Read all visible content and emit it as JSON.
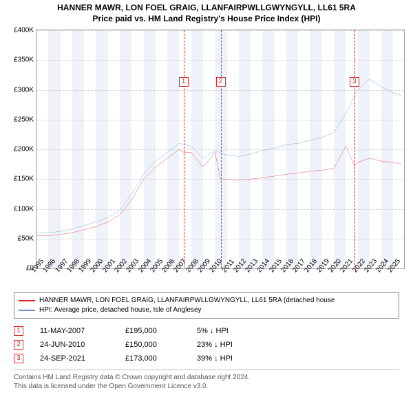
{
  "title": {
    "line1": "HANNER MAWR, LON FOEL GRAIG, LLANFAIRPWLLGWYNGYLL, LL61 5RA",
    "line2": "Price paid vs. HM Land Registry's House Price Index (HPI)"
  },
  "chart": {
    "type": "line",
    "background_color": "#ffffff",
    "grid_color": "#cccccc",
    "axis_color": "#999999",
    "xlim": [
      1995,
      2025.9
    ],
    "ylim": [
      0,
      400000
    ],
    "yticks": [
      0,
      50000,
      100000,
      150000,
      200000,
      250000,
      300000,
      350000,
      400000
    ],
    "ytick_labels": [
      "£0",
      "£50K",
      "£100K",
      "£150K",
      "£200K",
      "£250K",
      "£300K",
      "£350K",
      "£400K"
    ],
    "ytick_fontsize": 10,
    "xticks": [
      1995,
      1996,
      1997,
      1998,
      1999,
      2000,
      2001,
      2002,
      2003,
      2004,
      2005,
      2006,
      2007,
      2008,
      2009,
      2010,
      2011,
      2012,
      2013,
      2014,
      2015,
      2016,
      2017,
      2018,
      2019,
      2020,
      2021,
      2022,
      2023,
      2024,
      2025
    ],
    "xtick_fontsize": 10,
    "alt_bands": {
      "color": "#e8eef7",
      "years": [
        1996,
        1998,
        2000,
        2002,
        2004,
        2006,
        2008,
        2010,
        2012,
        2014,
        2016,
        2018,
        2020,
        2022,
        2024
      ]
    },
    "series": [
      {
        "name": "subject",
        "label": "HANNER MAWR, LON FOEL GRAIG, LLANFAIRPWLLGWYNGYLL, LL61 5RA (detached house",
        "color": "#d62728",
        "line_width": 1.4,
        "points": [
          [
            1995.0,
            55000
          ],
          [
            1996.0,
            55000
          ],
          [
            1997.0,
            57000
          ],
          [
            1998.0,
            60000
          ],
          [
            1999.0,
            65000
          ],
          [
            2000.0,
            70000
          ],
          [
            2001.0,
            78000
          ],
          [
            2002.0,
            90000
          ],
          [
            2003.0,
            115000
          ],
          [
            2004.0,
            150000
          ],
          [
            2005.0,
            170000
          ],
          [
            2006.0,
            185000
          ],
          [
            2007.0,
            200000
          ],
          [
            2007.36,
            195000
          ],
          [
            2008.0,
            195000
          ],
          [
            2009.0,
            170000
          ],
          [
            2010.0,
            195000
          ],
          [
            2010.48,
            150000
          ],
          [
            2011.0,
            150000
          ],
          [
            2012.0,
            148000
          ],
          [
            2013.0,
            150000
          ],
          [
            2014.0,
            152000
          ],
          [
            2015.0,
            155000
          ],
          [
            2016.0,
            158000
          ],
          [
            2017.0,
            160000
          ],
          [
            2018.0,
            163000
          ],
          [
            2019.0,
            165000
          ],
          [
            2020.0,
            168000
          ],
          [
            2021.0,
            205000
          ],
          [
            2021.73,
            173000
          ],
          [
            2022.0,
            178000
          ],
          [
            2023.0,
            185000
          ],
          [
            2024.0,
            180000
          ],
          [
            2025.0,
            178000
          ],
          [
            2025.7,
            175000
          ]
        ]
      },
      {
        "name": "hpi",
        "label": "HPI: Average price, detached house, Isle of Anglesey",
        "color": "#6b8fc9",
        "line_width": 1.4,
        "points": [
          [
            1995.0,
            60000
          ],
          [
            1996.0,
            60000
          ],
          [
            1997.0,
            62000
          ],
          [
            1998.0,
            66000
          ],
          [
            1999.0,
            72000
          ],
          [
            2000.0,
            78000
          ],
          [
            2001.0,
            85000
          ],
          [
            2002.0,
            98000
          ],
          [
            2003.0,
            125000
          ],
          [
            2004.0,
            158000
          ],
          [
            2005.0,
            180000
          ],
          [
            2006.0,
            195000
          ],
          [
            2007.0,
            210000
          ],
          [
            2008.0,
            205000
          ],
          [
            2009.0,
            185000
          ],
          [
            2010.0,
            198000
          ],
          [
            2011.0,
            190000
          ],
          [
            2012.0,
            188000
          ],
          [
            2013.0,
            192000
          ],
          [
            2014.0,
            198000
          ],
          [
            2015.0,
            202000
          ],
          [
            2016.0,
            208000
          ],
          [
            2017.0,
            210000
          ],
          [
            2018.0,
            215000
          ],
          [
            2019.0,
            220000
          ],
          [
            2020.0,
            228000
          ],
          [
            2021.0,
            260000
          ],
          [
            2022.0,
            300000
          ],
          [
            2023.0,
            318000
          ],
          [
            2024.0,
            305000
          ],
          [
            2025.0,
            295000
          ],
          [
            2025.7,
            290000
          ]
        ]
      }
    ],
    "markers": [
      {
        "n": "1",
        "x": 2007.36,
        "color": "#d62728",
        "box_y_offset": 68
      },
      {
        "n": "2",
        "x": 2010.48,
        "color": "#d62728",
        "box_y_offset": 68
      },
      {
        "n": "3",
        "x": 2021.73,
        "color": "#d62728",
        "box_y_offset": 68
      }
    ]
  },
  "legend": [
    {
      "color": "#d62728",
      "label_key": "chart.series.0.label"
    },
    {
      "color": "#6b8fc9",
      "label_key": "chart.series.1.label"
    }
  ],
  "sales": [
    {
      "n": "1",
      "color": "#d62728",
      "date": "11-MAY-2007",
      "price": "£195,000",
      "diff": "5% ↓ HPI"
    },
    {
      "n": "2",
      "color": "#d62728",
      "date": "24-JUN-2010",
      "price": "£150,000",
      "diff": "23% ↓ HPI"
    },
    {
      "n": "3",
      "color": "#d62728",
      "date": "24-SEP-2021",
      "price": "£173,000",
      "diff": "39% ↓ HPI"
    }
  ],
  "footnote": {
    "line1": "Contains HM Land Registry data © Crown copyright and database right 2024.",
    "line2": "This data is licensed under the Open Government Licence v3.0."
  }
}
